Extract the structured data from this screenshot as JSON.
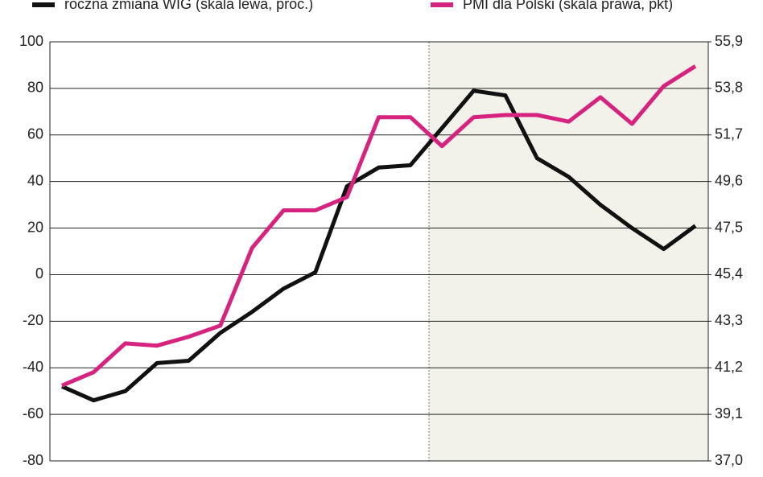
{
  "chart_data": {
    "type": "line",
    "legend": "top",
    "categories": [
      null,
      null,
      null,
      null,
      null,
      null,
      null,
      null,
      null,
      null,
      null,
      null,
      null,
      null,
      null,
      null,
      null,
      null,
      null,
      null,
      null
    ],
    "series": [
      {
        "name": "roczna zmiana WIG (skala lewa, proc.)",
        "color": "#111111",
        "values": [
          -48,
          -54,
          -50,
          -38,
          -37,
          -25,
          -16,
          -6,
          1,
          38,
          46,
          47,
          63,
          79,
          77,
          50,
          42,
          30,
          20,
          11,
          21
        ]
      },
      {
        "name": "PMI dla Polski (skala prawa, pkt)",
        "color": "#d6237f",
        "axis": "y2",
        "values": [
          40.4,
          41.0,
          42.3,
          42.2,
          42.6,
          43.1,
          46.6,
          48.3,
          48.3,
          48.9,
          52.5,
          52.5,
          51.2,
          52.5,
          52.6,
          52.6,
          52.3,
          53.4,
          52.2,
          53.9,
          54.8
        ]
      }
    ],
    "ylim": [
      -80,
      100
    ],
    "yticks": [
      -80,
      -60,
      -40,
      -20,
      0,
      20,
      40,
      60,
      80,
      100
    ],
    "y2lim": [
      37.0,
      55.9
    ],
    "y2ticks": [
      {
        "value": 37.0,
        "label": "37,0"
      },
      {
        "value": 39.1,
        "label": "39,1"
      },
      {
        "value": 41.2,
        "label": "41,2"
      },
      {
        "value": 43.3,
        "label": "43,3"
      },
      {
        "value": 45.4,
        "label": "45,4"
      },
      {
        "value": 47.5,
        "label": "47,5"
      },
      {
        "value": 49.6,
        "label": "49,6"
      },
      {
        "value": 51.7,
        "label": "51,7"
      },
      {
        "value": 53.8,
        "label": "53,8"
      },
      {
        "value": 55.9,
        "label": "55,9"
      }
    ],
    "grid": true
  }
}
